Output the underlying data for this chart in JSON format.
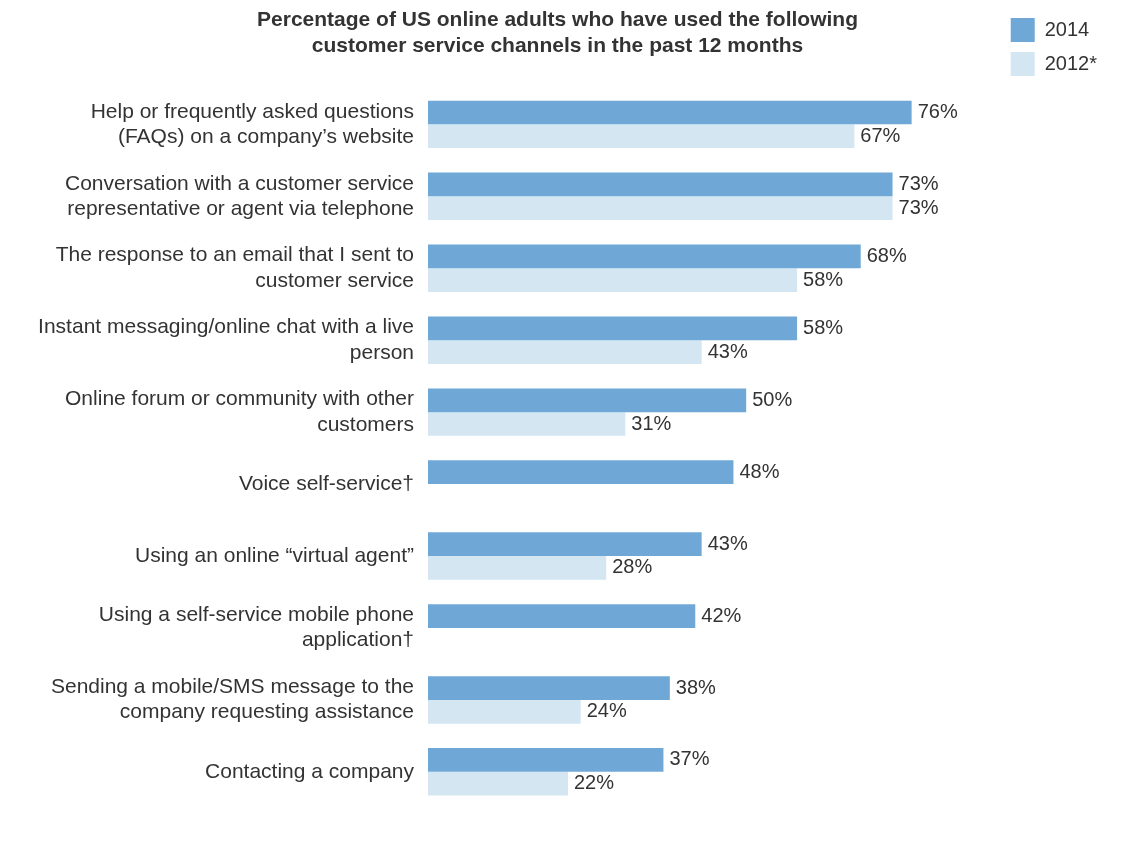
{
  "chart_data": {
    "type": "bar",
    "orientation": "horizontal",
    "title": "Percentage of US online adults who have used the following customer service channels in the past 12 months",
    "categories": [
      "Help or frequently asked questions (FAQs) on a company’s website",
      "Conversation with a customer service representative or agent via telephone",
      "The response to an email that I sent to customer service",
      "Instant messaging/online chat with a live person",
      "Online forum or community with other customers",
      "Voice self-service†",
      "Using an online “virtual agent”",
      "Using a self-service mobile phone application†",
      "Sending a mobile/SMS message to the company requesting assistance",
      "Contacting a company"
    ],
    "series": [
      {
        "name": "2014",
        "color": "#6fa8d6",
        "values": [
          76,
          73,
          68,
          58,
          50,
          48,
          43,
          42,
          38,
          37
        ],
        "value_labels": [
          "76%",
          "73%",
          "68%",
          "58%",
          "50%",
          "48%",
          "43%",
          "42%",
          "38%",
          "37%"
        ]
      },
      {
        "name": "2012*",
        "color": "#d3e6f2",
        "values": [
          67,
          73,
          58,
          43,
          31,
          null,
          28,
          null,
          24,
          22
        ],
        "value_labels": [
          "67%",
          "73%",
          "58%",
          "43%",
          "31%",
          null,
          "28%",
          null,
          "24%",
          "22%"
        ]
      }
    ],
    "legend": "top right"
  }
}
